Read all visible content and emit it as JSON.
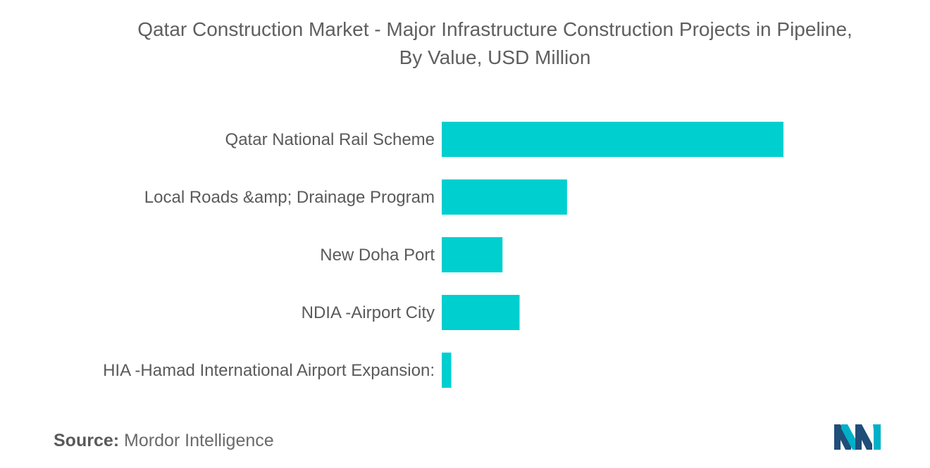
{
  "title_line1": "Qatar Construction Market - Major Infrastructure Construction Projects in Pipeline,",
  "title_line2": "By Value, USD Million",
  "source": {
    "label": "Source:",
    "text": "Mordor Intelligence"
  },
  "logo": {
    "icon": "mordor-intelligence-logo",
    "colors": [
      "#1f4e79",
      "#00b0c7"
    ]
  },
  "chart_data": {
    "type": "bar",
    "orientation": "horizontal",
    "title": "Qatar Construction Market - Major Infrastructure Construction Projects in Pipeline, By Value, USD Million",
    "categories": [
      "Qatar National Rail Scheme",
      "Local Roads &amp; Drainage Program",
      "New Doha Port",
      "NDIA -Airport City",
      "HIA -Hamad International Airport Expansion:"
    ],
    "values": [
      36000,
      13200,
      6400,
      8200,
      1000
    ],
    "xlim": [
      0,
      36000
    ],
    "xlabel": "",
    "ylabel": "USD Million",
    "grid": false,
    "legend": "none",
    "bar_color": "#00cfd0"
  }
}
